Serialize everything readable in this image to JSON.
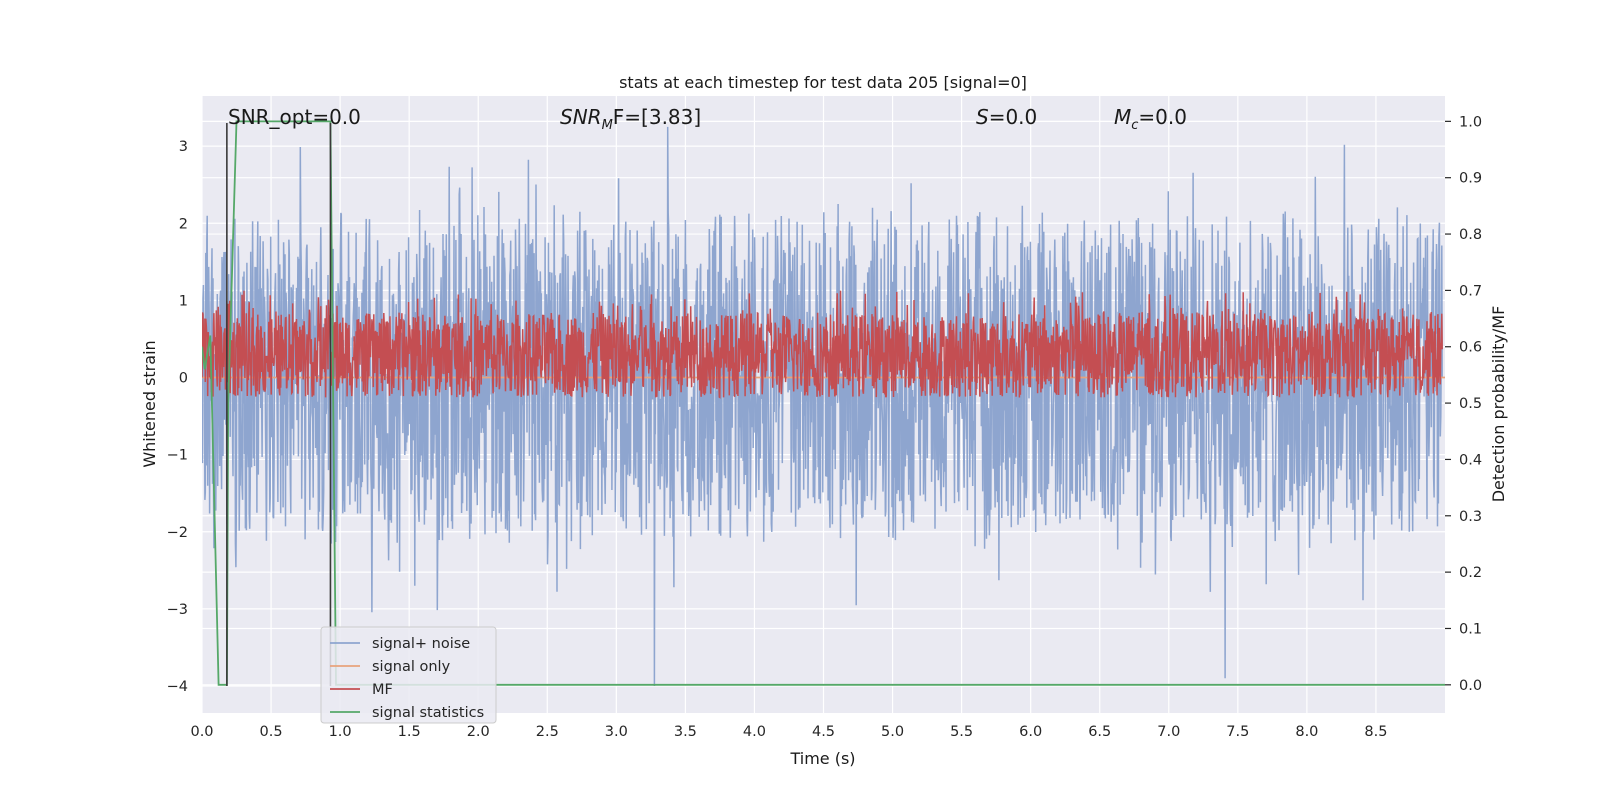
{
  "chart_data": {
    "type": "line",
    "title": "stats at each timestep for test data 205 [signal=0]",
    "xlabel": "Time (s)",
    "ylabel_left": "Whitened strain",
    "ylabel_right": "Detection probability/MF",
    "xlim": [
      0.0,
      9.0
    ],
    "ylim_left": [
      -4.35,
      3.65
    ],
    "ylim_right": [
      -0.05,
      1.045
    ],
    "xticks": [
      "0.0",
      "0.5",
      "1.0",
      "1.5",
      "2.0",
      "2.5",
      "3.0",
      "3.5",
      "4.0",
      "4.5",
      "5.0",
      "5.5",
      "6.0",
      "6.5",
      "7.0",
      "7.5",
      "8.0",
      "8.5"
    ],
    "yticks_left": [
      "3",
      "2",
      "1",
      "0",
      "−1",
      "−2",
      "−3",
      "−4"
    ],
    "yticks_right": [
      "1.0",
      "0.9",
      "0.8",
      "0.7",
      "0.6",
      "0.5",
      "0.4",
      "0.3",
      "0.2",
      "0.1",
      "0.0"
    ],
    "grid": true,
    "legend_placement": "lower-left",
    "annotations": {
      "snr_opt": "SNR_opt=0.0",
      "snr_mf_name": "SNR",
      "snr_mf_sub": "M",
      "snr_mf_rest": "F=[3.83]",
      "s_name": "S",
      "s_rest": "=0.0",
      "mc_name": "M",
      "mc_sub": "c",
      "mc_rest": "=0.0"
    },
    "series": [
      {
        "name": "signal+ noise",
        "color": "#8ea5cf",
        "axis": "left",
        "kind": "noise",
        "envelope": [
          -1.8,
          1.8
        ],
        "peak_max": 3.25,
        "peak_min": -4.0
      },
      {
        "name": "signal only",
        "color": "#e8a37c",
        "axis": "left",
        "x": [
          0.0,
          9.0
        ],
        "y": [
          0.0,
          0.0
        ]
      },
      {
        "name": "MF",
        "color": "#c44e52",
        "axis": "right",
        "kind": "noise",
        "band": [
          0.51,
          0.66
        ],
        "peak_max": 0.7
      },
      {
        "name": "signal statistics",
        "color": "#55a868",
        "axis": "right",
        "x": [
          0.0,
          0.02,
          0.06,
          0.12,
          0.18,
          0.19,
          0.25,
          0.33,
          0.93,
          0.97,
          1.0,
          9.0
        ],
        "y": [
          0.6,
          0.56,
          0.62,
          0.0,
          0.0,
          0.5,
          1.0,
          1.0,
          1.0,
          0.0,
          0.0,
          0.0
        ]
      }
    ],
    "vertical_lines": [
      {
        "x": 0.18,
        "y_range": [
          -4.0,
          3.3
        ],
        "color": "#3a3a3a"
      },
      {
        "x": 0.93,
        "y_range": [
          -4.0,
          3.3
        ],
        "color": "#3a3a3a"
      }
    ]
  }
}
